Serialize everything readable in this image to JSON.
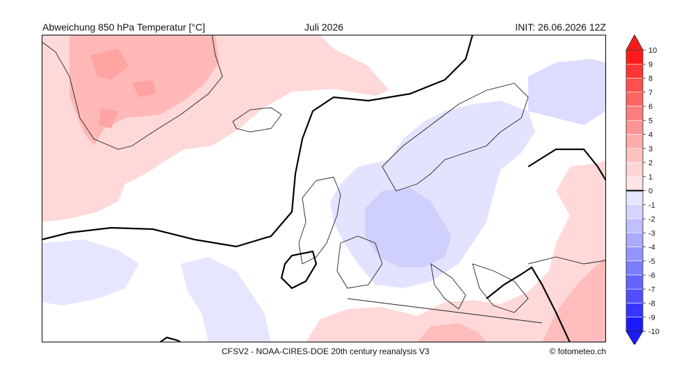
{
  "header": {
    "title": "Abweichung 850 hPa Temperatur [°C]",
    "month": "Juli 2026",
    "init": "INIT: 26.06.2026 12Z"
  },
  "footer": {
    "source": "CFSV2 - NOAA-CIRES-DOE 20th century reanalysis V3",
    "credit": "© fotometeo.ch"
  },
  "colorbar": {
    "labels": [
      "10",
      "9",
      "8",
      "7",
      "6",
      "5",
      "4",
      "3",
      "2",
      "1",
      "0",
      "-1",
      "-2",
      "-3",
      "-4",
      "-5",
      "-6",
      "-7",
      "-8",
      "-9",
      "-10"
    ],
    "warm_colors": [
      "#ff1a1a",
      "#ff3535",
      "#ff4f4f",
      "#ff6464",
      "#ff7c7c",
      "#ff9494",
      "#ffabab",
      "#ffc0c0",
      "#ffd4d4",
      "#ffe4e4"
    ],
    "cold_colors": [
      "#e6e6ff",
      "#d4d4ff",
      "#c0c0ff",
      "#aaaaff",
      "#9494ff",
      "#7c7cff",
      "#6464ff",
      "#4f4fff",
      "#3535ff",
      "#1a1aff"
    ],
    "zero_color": "#ffffff"
  },
  "map": {
    "ocean_color": "#ffffff",
    "coast_color": "#222222",
    "zero_contour_color": "#000000"
  }
}
